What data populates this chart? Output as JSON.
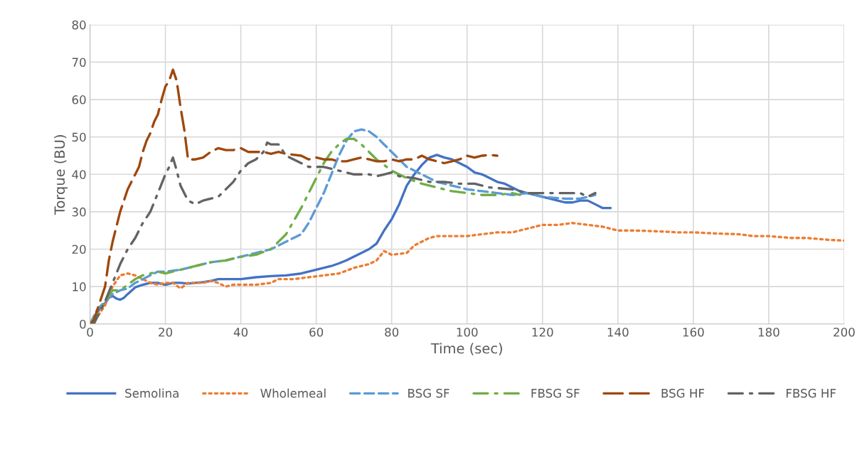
{
  "chart_data": {
    "type": "line",
    "xlabel": "Time (sec)",
    "ylabel": "Torque (BU)",
    "xlim": [
      0,
      200
    ],
    "ylim": [
      0,
      80
    ],
    "xticks": [
      0,
      20,
      40,
      60,
      80,
      100,
      120,
      140,
      160,
      180,
      200
    ],
    "yticks": [
      0,
      10,
      20,
      30,
      40,
      50,
      60,
      70,
      80
    ],
    "grid": true,
    "legend": "bottom",
    "marker": "none",
    "series": [
      {
        "name": "Semolina",
        "color": "#4472c4",
        "line_style": "solid",
        "x": [
          0,
          1,
          2,
          3,
          4,
          5,
          6,
          7,
          8,
          9,
          10,
          12,
          14,
          16,
          18,
          20,
          22,
          24,
          26,
          28,
          30,
          32,
          34,
          36,
          40,
          44,
          48,
          52,
          56,
          60,
          64,
          66,
          68,
          70,
          72,
          74,
          76,
          78,
          80,
          82,
          84,
          86,
          88,
          90,
          92,
          94,
          96,
          98,
          100,
          102,
          104,
          106,
          108,
          110,
          112,
          114,
          116,
          118,
          120,
          122,
          124,
          126,
          128,
          130,
          132,
          134,
          136,
          138
        ],
        "values": [
          0,
          0,
          3,
          5,
          5.5,
          7,
          7.5,
          6.8,
          6.5,
          7,
          8,
          9.8,
          10.5,
          11,
          11,
          10.5,
          11,
          11,
          10.8,
          11,
          11.2,
          11.5,
          12,
          12,
          12,
          12.5,
          12.8,
          13,
          13.5,
          14.5,
          15.5,
          16.2,
          17,
          18,
          19,
          20,
          21.5,
          25,
          28,
          32,
          37,
          40,
          42.5,
          44.5,
          45.2,
          44.5,
          44,
          43,
          42,
          40.5,
          40,
          39,
          38,
          37.5,
          36.5,
          35.5,
          35,
          34.5,
          34,
          33.5,
          33,
          32.5,
          32.5,
          33,
          33,
          32,
          31,
          31
        ]
      },
      {
        "name": "Wholemeal",
        "color": "#ed7d31",
        "line_style": "dotted",
        "x": [
          0,
          2,
          4,
          6,
          8,
          10,
          12,
          14,
          16,
          18,
          20,
          22,
          24,
          26,
          28,
          30,
          32,
          34,
          36,
          38,
          40,
          44,
          48,
          50,
          54,
          58,
          62,
          66,
          70,
          74,
          76,
          78,
          80,
          84,
          86,
          88,
          90,
          92,
          96,
          100,
          104,
          108,
          112,
          116,
          120,
          124,
          128,
          132,
          136,
          140,
          144,
          150,
          156,
          160,
          166,
          172,
          176,
          180,
          186,
          190,
          196,
          200
        ],
        "values": [
          0,
          2,
          5,
          10,
          13,
          13.5,
          13,
          12,
          11,
          10.5,
          11,
          11,
          9.5,
          11,
          11,
          11,
          11.5,
          11,
          10,
          10.5,
          10.5,
          10.5,
          11,
          12,
          12,
          12.5,
          13,
          13.5,
          15,
          16,
          17,
          19.5,
          18.5,
          19,
          21,
          22,
          23,
          23.5,
          23.5,
          23.5,
          24,
          24.5,
          24.5,
          25.5,
          26.5,
          26.5,
          27,
          26.5,
          26,
          25,
          25,
          24.8,
          24.5,
          24.5,
          24.2,
          24,
          23.5,
          23.5,
          23,
          23,
          22.5,
          22.3
        ]
      },
      {
        "name": "BSG SF",
        "color": "#5b9bd5",
        "line_style": "dashed",
        "x": [
          0,
          2,
          4,
          6,
          8,
          10,
          12,
          14,
          16,
          18,
          20,
          24,
          28,
          32,
          36,
          40,
          44,
          48,
          52,
          56,
          58,
          60,
          62,
          64,
          66,
          68,
          70,
          72,
          74,
          76,
          78,
          80,
          84,
          88,
          92,
          96,
          100,
          104,
          108,
          112,
          116,
          120,
          126,
          130,
          134
        ],
        "values": [
          0,
          4,
          6,
          8,
          9,
          9.5,
          11,
          12,
          13,
          14,
          14,
          14.5,
          15.5,
          16.5,
          17,
          18,
          19,
          20,
          22,
          24,
          27,
          31,
          35,
          40,
          45,
          49,
          51.5,
          52,
          51.5,
          50,
          48,
          46,
          42,
          40,
          38,
          37,
          36,
          35.5,
          35,
          34.5,
          35,
          34,
          33.5,
          33.5,
          34.5
        ]
      },
      {
        "name": "FBSG SF",
        "color": "#70ad47",
        "line_style": "dashdot",
        "x": [
          0,
          2,
          4,
          6,
          8,
          10,
          12,
          14,
          16,
          18,
          20,
          24,
          28,
          32,
          36,
          40,
          44,
          48,
          52,
          56,
          58,
          60,
          62,
          64,
          66,
          68,
          70,
          72,
          74,
          76,
          80,
          84,
          88,
          92,
          96,
          100,
          104,
          108,
          112,
          114
        ],
        "values": [
          0,
          3,
          6,
          9,
          9,
          10.5,
          12,
          13,
          13.5,
          14,
          13.5,
          14.5,
          15.5,
          16.5,
          17,
          18,
          18.5,
          20,
          24,
          31,
          35,
          39,
          43,
          46,
          48,
          49.5,
          49.5,
          48,
          46,
          44,
          41,
          39,
          37.5,
          36.5,
          35.5,
          35,
          34.5,
          34.5,
          35,
          34.5
        ]
      },
      {
        "name": "BSG HF",
        "color": "#9e480e",
        "line_style": "longdash",
        "x": [
          0,
          1,
          2,
          4,
          5,
          6,
          8,
          10,
          12,
          13,
          14,
          15,
          16,
          17,
          18,
          19,
          20,
          21,
          22,
          23,
          24,
          25,
          26,
          28,
          30,
          32,
          34,
          36,
          38,
          40,
          42,
          44,
          46,
          48,
          50,
          52,
          56,
          58,
          60,
          62,
          64,
          66,
          68,
          70,
          72,
          74,
          76,
          78,
          80,
          82,
          84,
          86,
          88,
          90,
          92,
          94,
          96,
          98,
          100,
          102,
          104,
          106,
          108
        ],
        "values": [
          0,
          1,
          4,
          10,
          17,
          22,
          30,
          36,
          40,
          42,
          46,
          49,
          51,
          54,
          56,
          60,
          63.5,
          65,
          68,
          65,
          58,
          52,
          44,
          44,
          44.5,
          46,
          47,
          46.5,
          46.5,
          47,
          46,
          46,
          46,
          45.5,
          46,
          45.5,
          45,
          44,
          44.5,
          44,
          44,
          43.5,
          43.5,
          44,
          44.5,
          44,
          43.5,
          43.5,
          44,
          43.5,
          44,
          44,
          45,
          44,
          43.5,
          43,
          43.5,
          44,
          45,
          44.5,
          45,
          45.2,
          45
        ]
      },
      {
        "name": "FBSG HF",
        "color": "#636363",
        "line_style": "dashdot",
        "x": [
          0,
          1,
          2,
          4,
          6,
          8,
          10,
          12,
          14,
          16,
          18,
          20,
          21,
          22,
          23,
          24,
          26,
          28,
          30,
          32,
          34,
          36,
          38,
          40,
          42,
          44,
          46,
          47,
          48,
          50,
          52,
          54,
          56,
          58,
          60,
          62,
          66,
          70,
          74,
          76,
          78,
          80,
          82,
          86,
          88,
          90,
          94,
          98,
          102,
          106,
          112,
          116,
          120,
          124,
          128,
          130,
          132,
          134
        ],
        "values": [
          0,
          0,
          2,
          6,
          11,
          16,
          20,
          23,
          27,
          30,
          35,
          40,
          42,
          44.5,
          41,
          37,
          33,
          32,
          33,
          33.5,
          34,
          36,
          38,
          41,
          43,
          44,
          46,
          48.5,
          48,
          48,
          45,
          44,
          43,
          42,
          42,
          42,
          41,
          40,
          40,
          39.5,
          40,
          40.5,
          39.5,
          39,
          38.5,
          38,
          38,
          37.5,
          37.5,
          36.5,
          36,
          35,
          35,
          35,
          35,
          35,
          34,
          35
        ]
      }
    ]
  }
}
